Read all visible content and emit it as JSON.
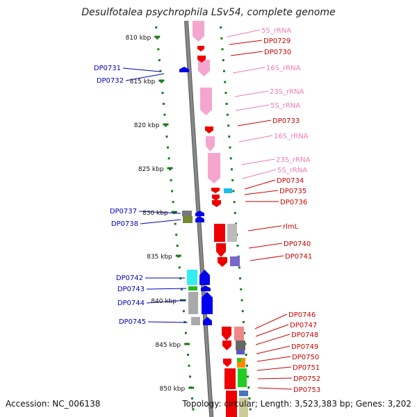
{
  "title": "Desulfotalea psychrophila LSv54, complete genome",
  "footer": {
    "accession": "Accession: NC_006138",
    "summary": "Topology: circular; Length: 3,523,383 bp; Genes: 3,202"
  },
  "colors": {
    "backbone": "#888888",
    "ticks": "#1a7a1a",
    "rna": "#f4a6cf",
    "rna_label": "#f07ab5",
    "gene_forward": "#ee0000",
    "gene_reverse": "#0000ee",
    "gene_label_forward": "#cc0000",
    "gene_label_reverse": "#0000bb"
  },
  "scale_labels": [
    "810 kbp",
    "815 kbp",
    "820 kbp",
    "825 kbp",
    "830 kbp",
    "835 kbp",
    "840 kbp",
    "845 kbp",
    "850 kbp"
  ],
  "left_labels": [
    "DP0731",
    "DP0732",
    "DP0737",
    "DP0738",
    "DP0742",
    "DP0743",
    "DP0744",
    "DP0745"
  ],
  "right_labels": [
    {
      "text": "5S_rRNA",
      "type": "rna"
    },
    {
      "text": "DP0729",
      "type": "gene"
    },
    {
      "text": "DP0730",
      "type": "gene"
    },
    {
      "text": "16S_rRNA",
      "type": "rna"
    },
    {
      "text": "23S_rRNA",
      "type": "rna"
    },
    {
      "text": "5S_rRNA",
      "type": "rna"
    },
    {
      "text": "DP0733",
      "type": "gene"
    },
    {
      "text": "16S_rRNA",
      "type": "rna"
    },
    {
      "text": "23S_rRNA",
      "type": "rna"
    },
    {
      "text": "5S_rRNA",
      "type": "rna"
    },
    {
      "text": "DP0734",
      "type": "gene"
    },
    {
      "text": "DP0735",
      "type": "gene"
    },
    {
      "text": "DP0736",
      "type": "gene"
    },
    {
      "text": "rlmL",
      "type": "gene"
    },
    {
      "text": "DP0740",
      "type": "gene"
    },
    {
      "text": "DP0741",
      "type": "gene"
    },
    {
      "text": "DP0746",
      "type": "gene"
    },
    {
      "text": "DP0747",
      "type": "gene"
    },
    {
      "text": "DP0748",
      "type": "gene"
    },
    {
      "text": "DP0749",
      "type": "gene"
    },
    {
      "text": "DP0750",
      "type": "gene"
    },
    {
      "text": "DP0751",
      "type": "gene"
    },
    {
      "text": "DP0752",
      "type": "gene"
    },
    {
      "text": "DP0753",
      "type": "gene"
    }
  ]
}
